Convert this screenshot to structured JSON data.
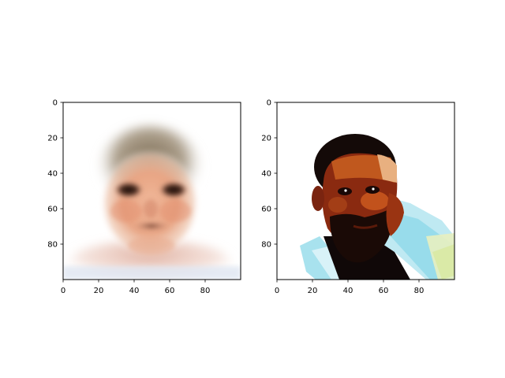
{
  "chart_data": [
    {
      "type": "image",
      "title": "",
      "xlabel": "",
      "ylabel": "",
      "xlim": [
        0,
        100
      ],
      "ylim": [
        100,
        0
      ],
      "xticks": [
        0,
        20,
        40,
        60,
        80
      ],
      "yticks": [
        0,
        20,
        40,
        60,
        80
      ],
      "content_icon": "blurred-average-face-image"
    },
    {
      "type": "image",
      "title": "",
      "xlabel": "",
      "ylabel": "",
      "xlim": [
        0,
        100
      ],
      "ylim": [
        100,
        0
      ],
      "xticks": [
        0,
        20,
        40,
        60,
        80
      ],
      "yticks": [
        0,
        20,
        40,
        60,
        80
      ],
      "content_icon": "high-contrast-face-photo"
    }
  ]
}
